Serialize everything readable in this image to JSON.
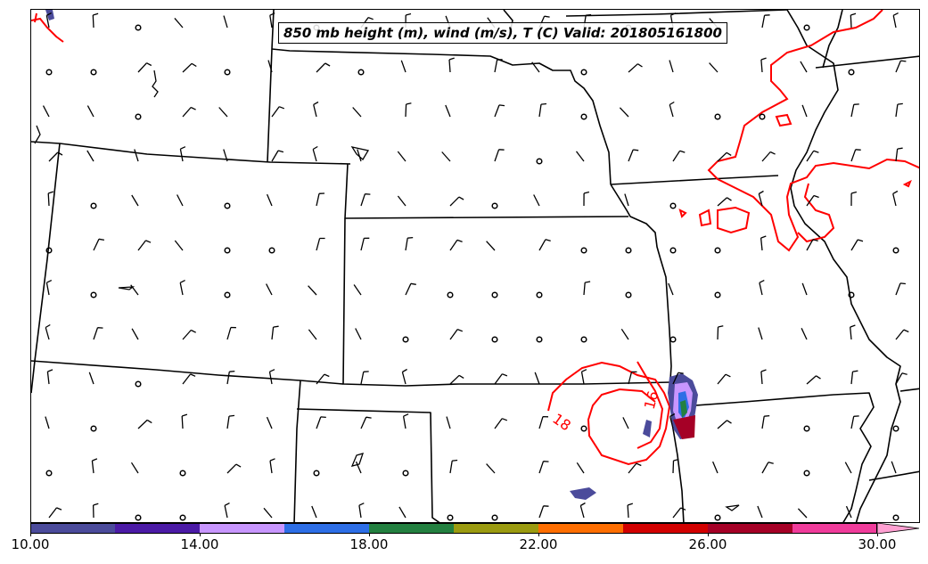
{
  "title": "850 mb height (m), wind (m/s), T (C) Valid: 201805161800",
  "colorbar": {
    "ticks": [
      "10.00",
      "14.00",
      "18.00",
      "22.00",
      "26.00",
      "30.00"
    ],
    "colors": [
      "#4b4b9b",
      "#4b1aa6",
      "#c896ff",
      "#2d6ee6",
      "#238040",
      "#9b9b10",
      "#ff6e00",
      "#d20000",
      "#a50026",
      "#f03c9b",
      "#ffa0d2"
    ]
  },
  "contour_labels": [
    "18",
    "16"
  ],
  "colors": {
    "temperature_contour": "#ff0000",
    "borders": "#000000",
    "wind_barbs": "#000000"
  }
}
